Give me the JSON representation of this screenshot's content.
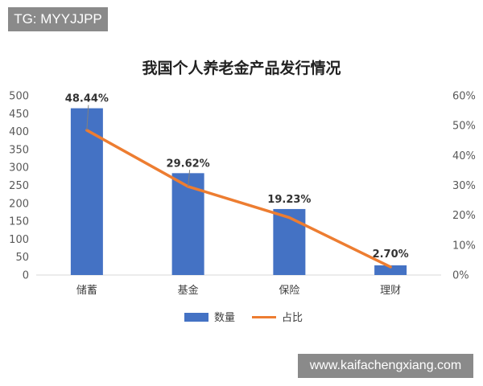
{
  "watermarks": {
    "top_left": "TG: MYYJJPP",
    "bottom_right": "www.kaifachengxiang.com"
  },
  "chart_data": {
    "type": "bar",
    "title": "我国个人养老金产品发行情况",
    "categories": [
      "储蓄",
      "基金",
      "保险",
      "理财"
    ],
    "series": [
      {
        "name": "数量",
        "type": "bar",
        "axis": "left",
        "color": "#4472c4",
        "values": [
          465,
          284,
          184,
          27
        ]
      },
      {
        "name": "占比",
        "type": "line",
        "axis": "right",
        "color": "#ed7d31",
        "values": [
          48.44,
          29.62,
          19.23,
          2.7
        ],
        "labels": [
          "48.44%",
          "29.62%",
          "19.23%",
          "2.70%"
        ]
      }
    ],
    "y_left": {
      "ylim": [
        0,
        500
      ],
      "ticks": [
        "0",
        "50",
        "100",
        "150",
        "200",
        "250",
        "300",
        "350",
        "400",
        "450",
        "500"
      ]
    },
    "y_right": {
      "ylim": [
        0,
        60
      ],
      "ticks": [
        "0%",
        "10%",
        "20%",
        "30%",
        "40%",
        "50%",
        "60%"
      ]
    },
    "legend_position": "bottom",
    "grid": false
  }
}
